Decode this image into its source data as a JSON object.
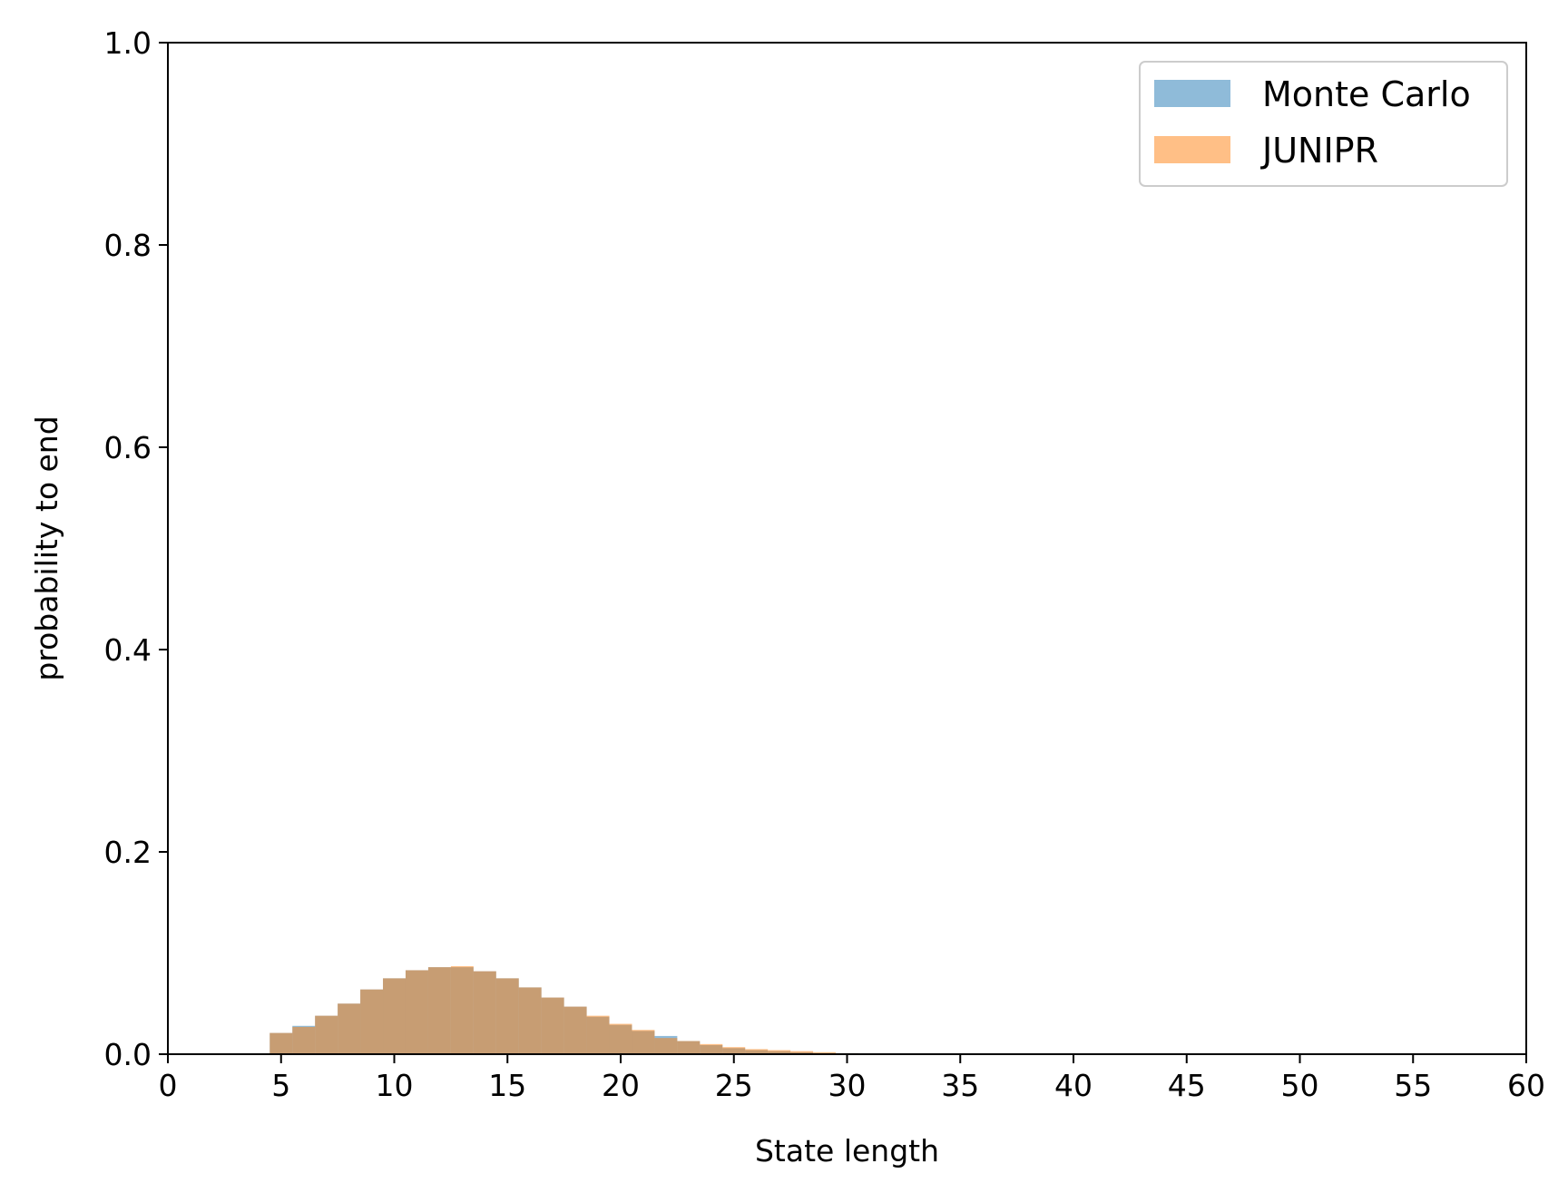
{
  "chart_data": {
    "type": "bar",
    "title": "",
    "xlabel": "State length",
    "ylabel": "probability to end",
    "xlim": [
      0,
      60
    ],
    "ylim": [
      0,
      1.0
    ],
    "xticks": [
      "0",
      "5",
      "10",
      "15",
      "20",
      "25",
      "30",
      "35",
      "40",
      "45",
      "50",
      "55",
      "60"
    ],
    "yticks": [
      "0.0",
      "0.2",
      "0.4",
      "0.6",
      "0.8",
      "1.0"
    ],
    "grid": false,
    "legend_position": "top-right",
    "bin_width": 1,
    "x": [
      5,
      6,
      7,
      8,
      9,
      10,
      11,
      12,
      13,
      14,
      15,
      16,
      17,
      18,
      19,
      20,
      21,
      22,
      23,
      24,
      25,
      26,
      27,
      28,
      29,
      30
    ],
    "series": [
      {
        "name": "Monte Carlo",
        "color": "#1f77b4",
        "opacity": 0.5,
        "values": [
          0.021,
          0.028,
          0.038,
          0.05,
          0.064,
          0.075,
          0.083,
          0.086,
          0.086,
          0.082,
          0.075,
          0.066,
          0.056,
          0.047,
          0.037,
          0.029,
          0.023,
          0.018,
          0.013,
          0.009,
          0.006,
          0.004,
          0.003,
          0.002,
          0.001,
          0.001
        ]
      },
      {
        "name": "JUNIPR",
        "color": "#ff7f0e",
        "opacity": 0.5,
        "values": [
          0.021,
          0.027,
          0.038,
          0.05,
          0.064,
          0.075,
          0.083,
          0.086,
          0.087,
          0.082,
          0.075,
          0.066,
          0.056,
          0.047,
          0.038,
          0.03,
          0.024,
          0.016,
          0.013,
          0.01,
          0.007,
          0.005,
          0.004,
          0.003,
          0.002,
          0.001
        ]
      }
    ]
  }
}
